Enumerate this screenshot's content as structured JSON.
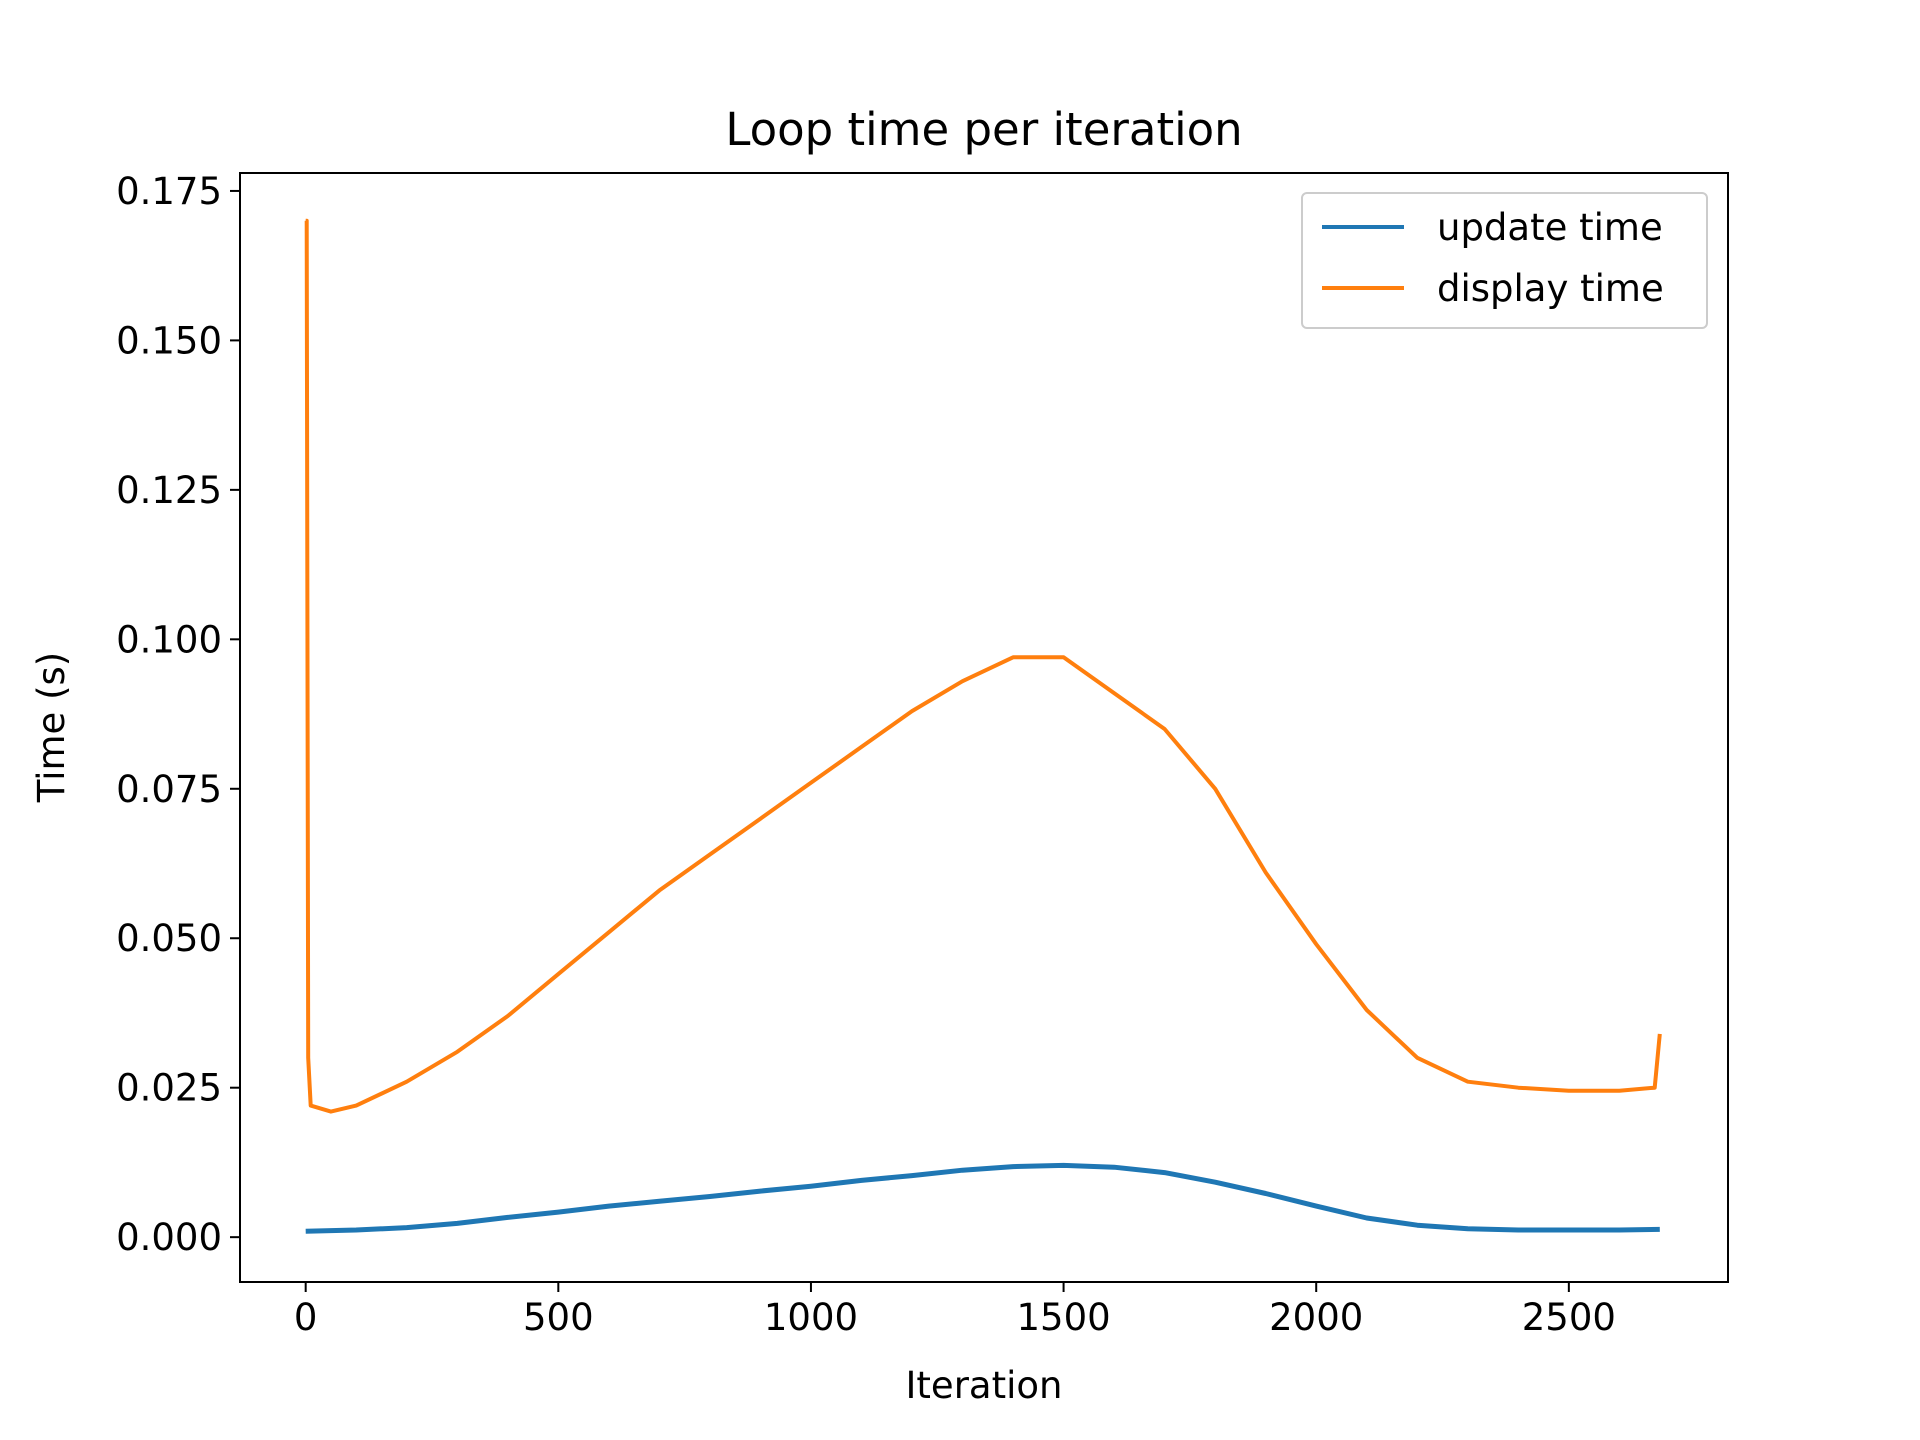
{
  "chart_data": {
    "type": "line",
    "title": "Loop time per iteration",
    "xlabel": "Iteration",
    "ylabel": "Time (s)",
    "xlim": [
      -130,
      2815
    ],
    "ylim": [
      -0.0075,
      0.178
    ],
    "xticks": [
      0,
      500,
      1000,
      1500,
      2000,
      2500
    ],
    "xtick_labels": [
      "0",
      "500",
      "1000",
      "1500",
      "2000",
      "2500"
    ],
    "yticks": [
      0.0,
      0.025,
      0.05,
      0.075,
      0.1,
      0.125,
      0.15,
      0.175
    ],
    "ytick_labels": [
      "0.000",
      "0.025",
      "0.050",
      "0.075",
      "0.100",
      "0.125",
      "0.150",
      "0.175"
    ],
    "grid": false,
    "legend_position": "top-right",
    "series": [
      {
        "name": "update time",
        "color": "#1f77b4",
        "x": [
          0,
          100,
          200,
          300,
          400,
          500,
          600,
          700,
          800,
          900,
          1000,
          1100,
          1200,
          1300,
          1400,
          1500,
          1600,
          1700,
          1800,
          1900,
          2000,
          2100,
          2200,
          2300,
          2400,
          2500,
          2600,
          2680
        ],
        "y": [
          0.001,
          0.0012,
          0.0016,
          0.0023,
          0.0033,
          0.0042,
          0.0052,
          0.006,
          0.0068,
          0.0077,
          0.0085,
          0.0095,
          0.0103,
          0.0112,
          0.0118,
          0.012,
          0.0117,
          0.0108,
          0.0092,
          0.0073,
          0.0052,
          0.0032,
          0.002,
          0.0014,
          0.0012,
          0.0012,
          0.0012,
          0.0013
        ]
      },
      {
        "name": "display time",
        "color": "#ff7f0e",
        "x": [
          0,
          2,
          5,
          10,
          50,
          100,
          200,
          300,
          400,
          500,
          600,
          700,
          800,
          900,
          1000,
          1100,
          1200,
          1300,
          1400,
          1500,
          1600,
          1700,
          1800,
          1900,
          2000,
          2100,
          2200,
          2300,
          2400,
          2500,
          2600,
          2670,
          2680
        ],
        "y": [
          0.17,
          0.17,
          0.03,
          0.022,
          0.021,
          0.022,
          0.026,
          0.031,
          0.037,
          0.044,
          0.051,
          0.058,
          0.064,
          0.07,
          0.076,
          0.082,
          0.088,
          0.093,
          0.097,
          0.097,
          0.091,
          0.085,
          0.075,
          0.061,
          0.049,
          0.038,
          0.03,
          0.026,
          0.025,
          0.0245,
          0.0245,
          0.025,
          0.034
        ]
      }
    ]
  }
}
